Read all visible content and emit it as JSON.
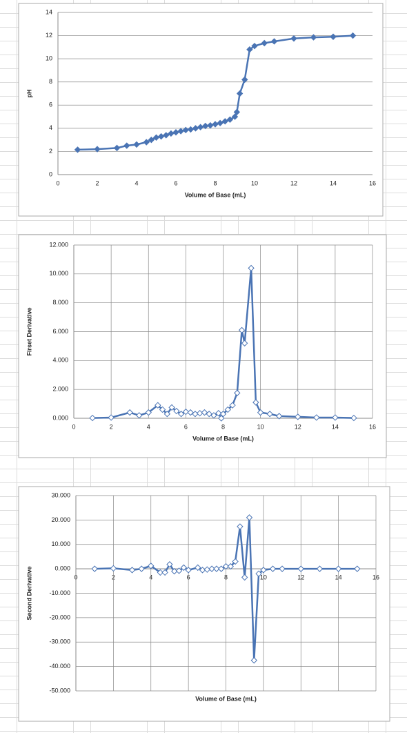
{
  "chart_data": [
    {
      "type": "line",
      "xlabel": "Volume of Base (mL)",
      "ylabel": "pH",
      "color": "#4a74b4",
      "marker": "filled-diamond",
      "xgrid": false,
      "ygrid": true,
      "x": [
        1,
        2,
        3,
        3.5,
        4,
        4.5,
        4.75,
        5,
        5.25,
        5.5,
        5.75,
        6,
        6.25,
        6.5,
        6.75,
        7,
        7.25,
        7.5,
        7.75,
        8,
        8.25,
        8.5,
        8.75,
        9,
        9.1,
        9.25,
        9.5,
        9.75,
        10,
        10.5,
        11,
        12,
        13,
        14,
        15
      ],
      "values": [
        2.15,
        2.2,
        2.3,
        2.5,
        2.6,
        2.8,
        3.0,
        3.2,
        3.3,
        3.4,
        3.55,
        3.65,
        3.75,
        3.85,
        3.9,
        4.0,
        4.1,
        4.2,
        4.25,
        4.35,
        4.45,
        4.6,
        4.75,
        5.0,
        5.4,
        7.0,
        8.2,
        10.8,
        11.1,
        11.35,
        11.5,
        11.75,
        11.85,
        11.9,
        12.0
      ],
      "xlim": [
        0,
        16
      ],
      "xticks": [
        0,
        2,
        4,
        6,
        8,
        10,
        12,
        14,
        16
      ],
      "ylim": [
        0,
        14
      ],
      "yticks": [
        0,
        2,
        4,
        6,
        8,
        10,
        12,
        14
      ]
    },
    {
      "type": "line",
      "xlabel": "Volume of Base (mL)",
      "ylabel": "Firset Derivative",
      "color": "#4a74b4",
      "marker": "open-diamond",
      "xgrid": true,
      "ygrid": true,
      "x": [
        1,
        2,
        3,
        3.5,
        4,
        4.5,
        4.75,
        5,
        5.25,
        5.5,
        5.75,
        6,
        6.25,
        6.5,
        6.75,
        7,
        7.25,
        7.5,
        7.75,
        7.9,
        8,
        8.25,
        8.5,
        8.75,
        9,
        9.15,
        9.5,
        9.75,
        10,
        10.5,
        11,
        12,
        13,
        14,
        15
      ],
      "values": [
        0.02,
        0.05,
        0.4,
        0.2,
        0.4,
        0.9,
        0.6,
        0.3,
        0.75,
        0.5,
        0.3,
        0.45,
        0.4,
        0.3,
        0.35,
        0.4,
        0.3,
        0.2,
        0.35,
        0.0,
        0.3,
        0.6,
        0.9,
        1.75,
        6.1,
        5.2,
        10.4,
        1.1,
        0.4,
        0.3,
        0.15,
        0.1,
        0.05,
        0.05,
        0.02
      ],
      "xlim": [
        0,
        16
      ],
      "xticks": [
        0,
        2,
        4,
        6,
        8,
        10,
        12,
        14,
        16
      ],
      "ylim": [
        0,
        12
      ],
      "yticks": [
        {
          "value": 0,
          "label": "0.000"
        },
        {
          "value": 2,
          "label": "2.000"
        },
        {
          "value": 4,
          "label": "4.000"
        },
        {
          "value": 6,
          "label": "6.000"
        },
        {
          "value": 8,
          "label": "8.000"
        },
        {
          "value": 10,
          "label": "10.000"
        },
        {
          "value": 12,
          "label": "12.000"
        }
      ]
    },
    {
      "type": "line",
      "xlabel": "Volume of Base (mL)",
      "ylabel": "Second Derivative",
      "color": "#4a74b4",
      "marker": "open-diamond",
      "xgrid": true,
      "ygrid": true,
      "x": [
        1,
        2,
        3,
        3.5,
        4,
        4.5,
        4.75,
        5,
        5.25,
        5.5,
        5.75,
        6,
        6.5,
        6.75,
        7,
        7.25,
        7.5,
        7.75,
        8,
        8.25,
        8.5,
        8.75,
        9,
        9.25,
        9.5,
        9.75,
        10,
        10.5,
        11,
        12,
        13,
        14,
        15
      ],
      "values": [
        0,
        0.2,
        -0.5,
        0,
        1.2,
        -1.5,
        -1.5,
        1.8,
        -1,
        -0.8,
        0.5,
        -0.5,
        0.5,
        -0.5,
        -0.3,
        0,
        0,
        0,
        1,
        1,
        3,
        17.3,
        -3.5,
        21,
        -37.5,
        -2,
        -0.5,
        0,
        0,
        0,
        0,
        0,
        0
      ],
      "xlim": [
        0,
        16
      ],
      "xticks": [
        0,
        2,
        4,
        6,
        8,
        10,
        12,
        14,
        16
      ],
      "ylim": [
        -50,
        30
      ],
      "yticks": [
        {
          "value": -50,
          "label": "-50.000"
        },
        {
          "value": -40,
          "label": "-40.000"
        },
        {
          "value": -30,
          "label": "-30.000"
        },
        {
          "value": -20,
          "label": "-20.000"
        },
        {
          "value": -10,
          "label": "-10.000"
        },
        {
          "value": 0,
          "label": "0.000"
        },
        {
          "value": 10,
          "label": "10.000"
        },
        {
          "value": 20,
          "label": "20.000"
        },
        {
          "value": 30,
          "label": "30.000"
        }
      ]
    }
  ]
}
